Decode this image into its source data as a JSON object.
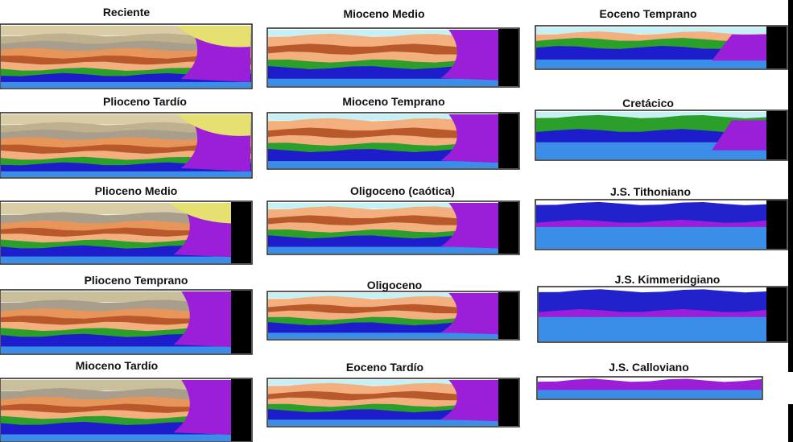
{
  "panels": [
    {
      "title": "Reciente"
    },
    {
      "title": "Plioceno Tardío"
    },
    {
      "title": "Plioceno Medio"
    },
    {
      "title": "Plioceno Temprano"
    },
    {
      "title": "Mioceno Tardío"
    },
    {
      "title": "Mioceno Medio"
    },
    {
      "title": "Mioceno Temprano"
    },
    {
      "title": "Oligoceno (caótica)"
    },
    {
      "title": "Oligoceno"
    },
    {
      "title": "Eoceno Tardío"
    },
    {
      "title": "Eoceno Temprano"
    },
    {
      "title": "Cretácico"
    },
    {
      "title": "J.S. Tithoniano"
    },
    {
      "title": "J.S. Kimmeridgiano"
    },
    {
      "title": "J.S. Calloviano"
    }
  ]
}
